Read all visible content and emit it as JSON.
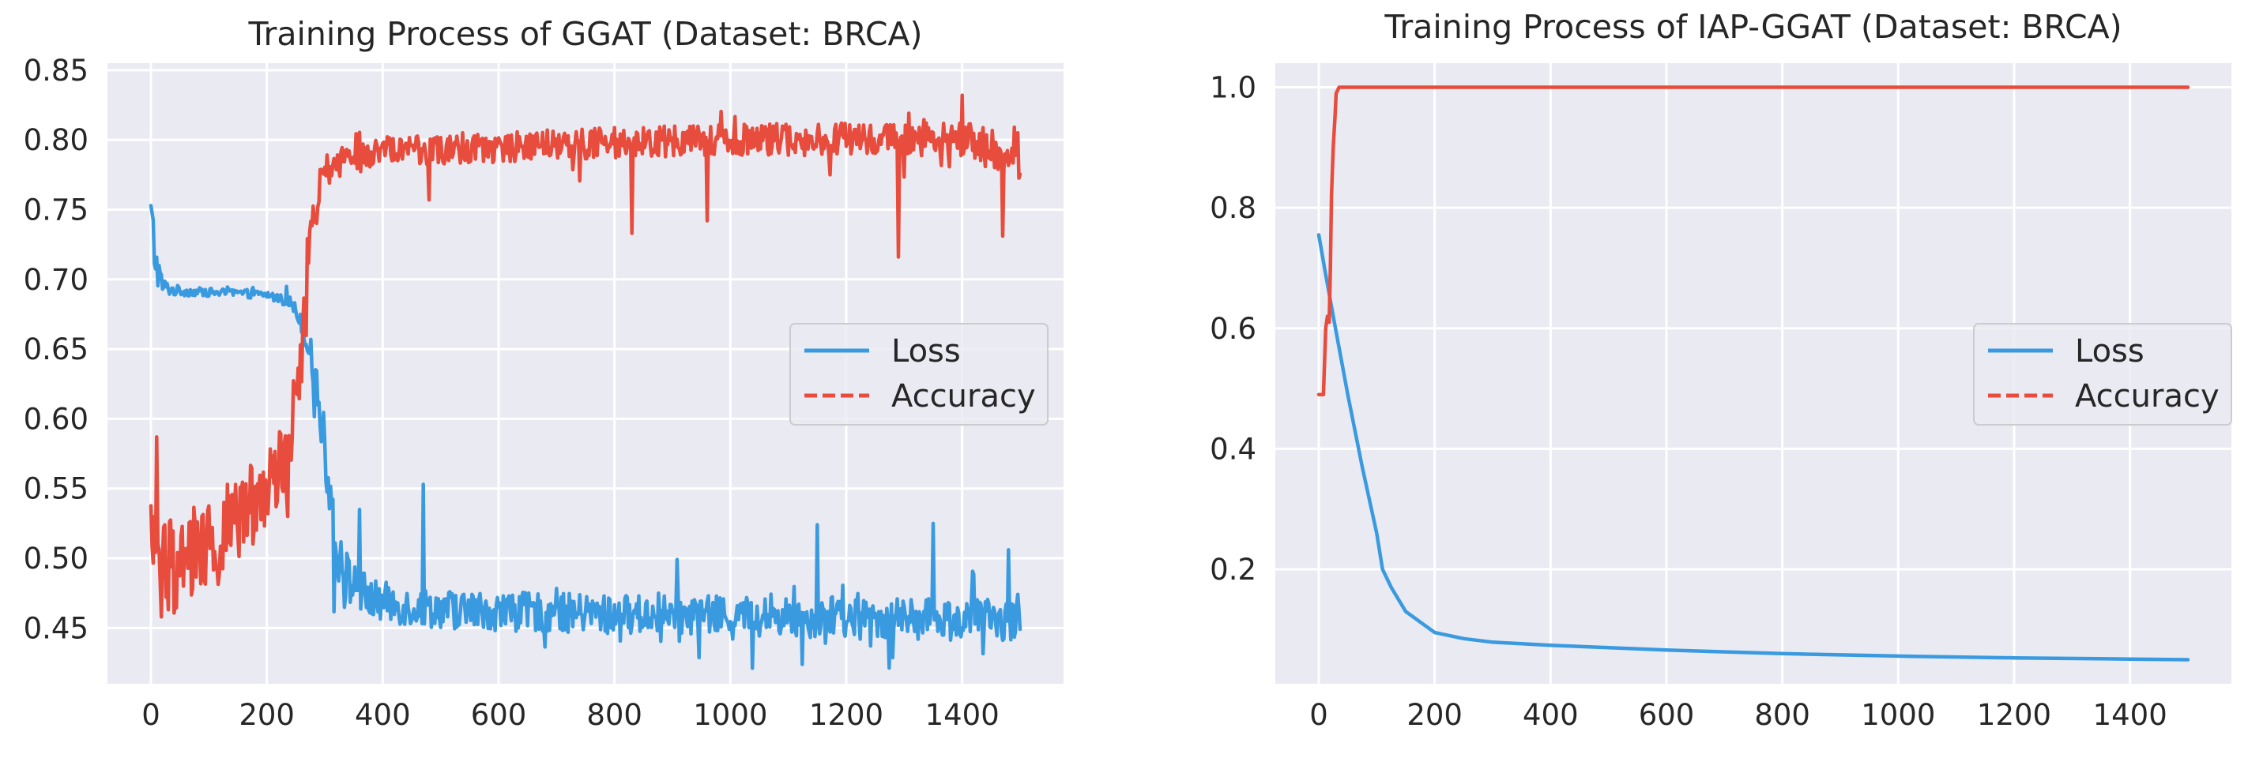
{
  "colors": {
    "loss": "#3a9ae0",
    "accuracy": "#e84c3d",
    "panel_bg": "#eaeaf2",
    "grid": "#ffffff",
    "text": "#262626"
  },
  "chart_data": [
    {
      "type": "line",
      "title": "Training Process of GGAT (Dataset: BRCA)",
      "xlabel": "",
      "ylabel": "",
      "xlim": [
        -75,
        1575
      ],
      "ylim": [
        0.41,
        0.855
      ],
      "xticks": [
        0,
        200,
        400,
        600,
        800,
        1000,
        1200,
        1400
      ],
      "yticks": [
        0.45,
        0.5,
        0.55,
        0.6,
        0.65,
        0.7,
        0.75,
        0.8,
        0.85
      ],
      "ytick_labels": [
        "0.45",
        "0.50",
        "0.55",
        "0.60",
        "0.65",
        "0.70",
        "0.75",
        "0.80",
        "0.85"
      ],
      "grid": true,
      "legend_position": "center-right",
      "series": [
        {
          "name": "Loss",
          "style": "solid",
          "color_key": "loss",
          "noisy": true,
          "x": [
            0,
            10,
            20,
            40,
            80,
            150,
            200,
            240,
            260,
            280,
            300,
            320,
            340,
            380,
            450,
            600,
            800,
            1000,
            1200,
            1400,
            1500
          ],
          "values": [
            0.74,
            0.71,
            0.695,
            0.692,
            0.691,
            0.69,
            0.689,
            0.684,
            0.67,
            0.64,
            0.58,
            0.51,
            0.485,
            0.47,
            0.465,
            0.462,
            0.46,
            0.459,
            0.457,
            0.456,
            0.455
          ],
          "noise": [
            0.03,
            0.015,
            0.006,
            0.004,
            0.003,
            0.003,
            0.003,
            0.004,
            0.008,
            0.012,
            0.02,
            0.025,
            0.018,
            0.015,
            0.014,
            0.014,
            0.014,
            0.014,
            0.015,
            0.015,
            0.015
          ],
          "spikes": [
            [
              470,
              0.553
            ],
            [
              1150,
              0.524
            ],
            [
              1350,
              0.525
            ],
            [
              360,
              0.535
            ],
            [
              1480,
              0.506
            ]
          ]
        },
        {
          "name": "Accuracy",
          "style": "dashed",
          "color_key": "accuracy",
          "noisy": true,
          "x": [
            0,
            20,
            60,
            100,
            150,
            200,
            240,
            260,
            275,
            290,
            320,
            400,
            600,
            800,
            1000,
            1200,
            1400,
            1500
          ],
          "values": [
            0.52,
            0.49,
            0.5,
            0.51,
            0.53,
            0.55,
            0.58,
            0.66,
            0.72,
            0.77,
            0.785,
            0.792,
            0.795,
            0.798,
            0.8,
            0.801,
            0.8,
            0.79
          ],
          "noise": [
            0.04,
            0.035,
            0.035,
            0.035,
            0.03,
            0.025,
            0.03,
            0.035,
            0.03,
            0.015,
            0.012,
            0.011,
            0.011,
            0.011,
            0.011,
            0.012,
            0.012,
            0.02
          ],
          "spikes": [
            [
              10,
              0.587
            ],
            [
              85,
              0.445
            ],
            [
              480,
              0.757
            ],
            [
              830,
              0.733
            ],
            [
              960,
              0.742
            ],
            [
              1290,
              0.716
            ],
            [
              1470,
              0.731
            ],
            [
              1400,
              0.832
            ]
          ]
        }
      ]
    },
    {
      "type": "line",
      "title": "Training Process of IAP-GGAT (Dataset: BRCA)",
      "xlabel": "",
      "ylabel": "",
      "xlim": [
        -75,
        1575
      ],
      "ylim": [
        0.01,
        1.04
      ],
      "xticks": [
        0,
        200,
        400,
        600,
        800,
        1000,
        1200,
        1400
      ],
      "yticks": [
        0.2,
        0.4,
        0.6,
        0.8,
        1.0
      ],
      "ytick_labels": [
        "0.2",
        "0.4",
        "0.6",
        "0.8",
        "1.0"
      ],
      "grid": true,
      "legend_position": "center-right",
      "series": [
        {
          "name": "Loss",
          "style": "solid",
          "color_key": "loss",
          "noisy": false,
          "x": [
            0,
            10,
            25,
            50,
            75,
            100,
            110,
            125,
            150,
            200,
            250,
            300,
            400,
            500,
            600,
            800,
            1000,
            1200,
            1400,
            1500
          ],
          "values": [
            0.755,
            0.7,
            0.62,
            0.49,
            0.37,
            0.26,
            0.2,
            0.17,
            0.13,
            0.095,
            0.085,
            0.079,
            0.074,
            0.07,
            0.066,
            0.06,
            0.056,
            0.053,
            0.051,
            0.05
          ]
        },
        {
          "name": "Accuracy",
          "style": "dashed",
          "color_key": "accuracy",
          "noisy": false,
          "x": [
            0,
            8,
            12,
            15,
            18,
            20,
            22,
            25,
            28,
            30,
            35,
            40,
            60,
            100,
            200,
            400,
            800,
            1200,
            1500
          ],
          "values": [
            0.49,
            0.49,
            0.6,
            0.62,
            0.61,
            0.7,
            0.82,
            0.9,
            0.95,
            0.99,
            1.0,
            1.0,
            1.0,
            1.0,
            1.0,
            1.0,
            1.0,
            1.0,
            1.0
          ]
        }
      ]
    }
  ]
}
